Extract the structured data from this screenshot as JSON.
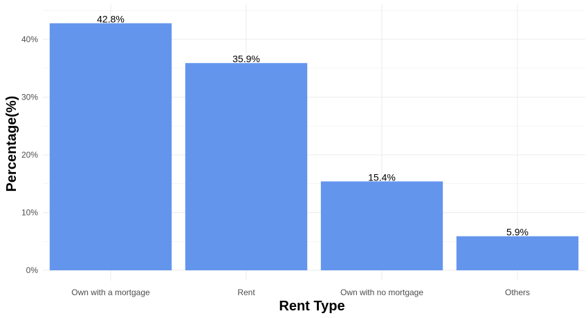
{
  "chart_data": {
    "type": "bar",
    "title": "",
    "xlabel": "Rent Type",
    "ylabel": "Percentage(%)",
    "categories": [
      "Own with a mortgage",
      "Rent",
      "Own with no mortgage",
      "Others"
    ],
    "values": [
      42.8,
      35.9,
      15.4,
      5.9
    ],
    "value_labels": [
      "42.8%",
      "35.9%",
      "15.4%",
      "5.9%"
    ],
    "ylim": [
      0,
      45
    ],
    "yticks": [
      0,
      10,
      20,
      30,
      40
    ],
    "ytick_labels": [
      "0%",
      "10%",
      "20%",
      "30%",
      "40%"
    ],
    "grid": true,
    "legend": "none",
    "bar_color": "#6495ED",
    "grid_color": "#EBEBEB"
  }
}
